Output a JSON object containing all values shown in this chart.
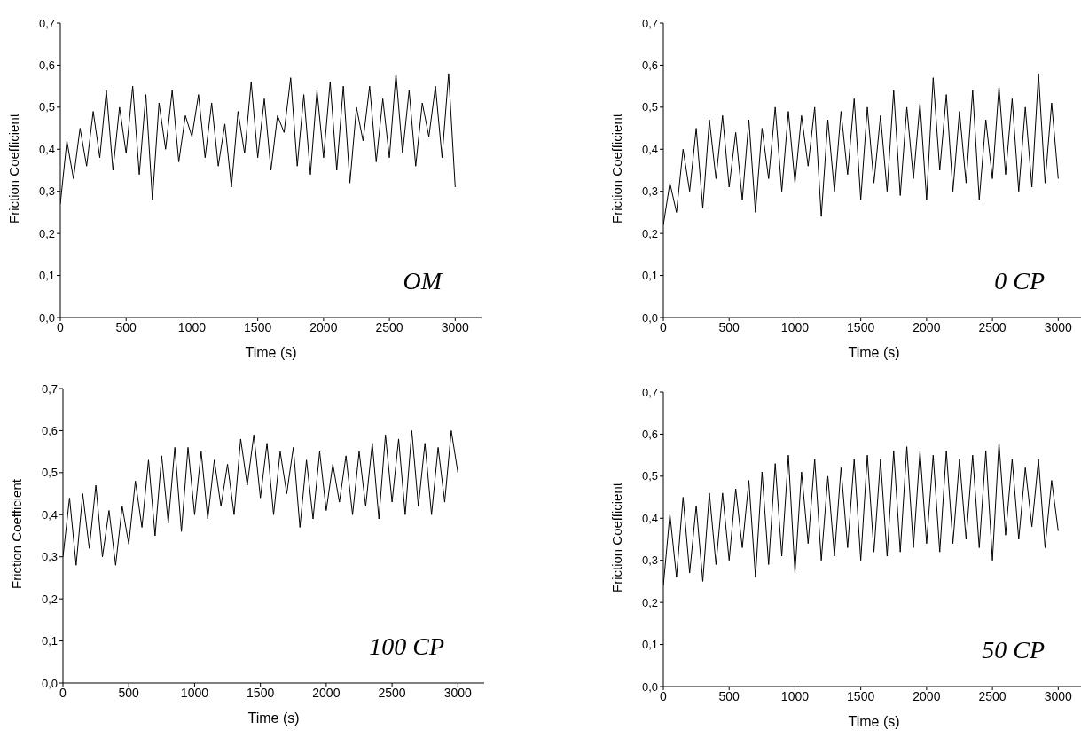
{
  "chart_data": [
    {
      "type": "line",
      "xlabel": "Time (s)",
      "ylabel": "Friction Coefficient",
      "annotations": [
        "OM"
      ],
      "xlim": [
        0,
        3200
      ],
      "xticks": [
        0,
        500,
        1000,
        1500,
        2000,
        2500,
        3000
      ],
      "ylim": [
        0,
        0.7
      ],
      "yticks": [
        {
          "value": 0,
          "label": "0,0"
        },
        {
          "value": 0.1,
          "label": "0,1"
        },
        {
          "value": 0.2,
          "label": "0,2"
        },
        {
          "value": 0.3,
          "label": "0,3"
        },
        {
          "value": 0.4,
          "label": "0,4"
        },
        {
          "value": 0.5,
          "label": "0,5"
        },
        {
          "value": 0.6,
          "label": "0,6"
        },
        {
          "value": 0.7,
          "label": "0,7"
        }
      ],
      "x": [
        0,
        50,
        100,
        150,
        200,
        250,
        300,
        350,
        400,
        450,
        500,
        550,
        600,
        650,
        700,
        750,
        800,
        850,
        900,
        950,
        1000,
        1050,
        1100,
        1150,
        1200,
        1250,
        1300,
        1350,
        1400,
        1450,
        1500,
        1550,
        1600,
        1650,
        1700,
        1750,
        1800,
        1850,
        1900,
        1950,
        2000,
        2050,
        2100,
        2150,
        2200,
        2250,
        2300,
        2350,
        2400,
        2450,
        2500,
        2550,
        2600,
        2650,
        2700,
        2750,
        2800,
        2850,
        2900,
        2950,
        3000
      ],
      "series": [
        {
          "color": "#000000",
          "values": [
            0.27,
            0.42,
            0.33,
            0.45,
            0.36,
            0.49,
            0.38,
            0.54,
            0.35,
            0.5,
            0.39,
            0.55,
            0.34,
            0.53,
            0.28,
            0.51,
            0.4,
            0.54,
            0.37,
            0.48,
            0.43,
            0.53,
            0.38,
            0.51,
            0.36,
            0.46,
            0.31,
            0.49,
            0.39,
            0.56,
            0.38,
            0.52,
            0.35,
            0.48,
            0.44,
            0.57,
            0.36,
            0.53,
            0.34,
            0.54,
            0.38,
            0.56,
            0.35,
            0.55,
            0.32,
            0.5,
            0.42,
            0.55,
            0.37,
            0.52,
            0.38,
            0.58,
            0.39,
            0.54,
            0.36,
            0.51,
            0.43,
            0.55,
            0.38,
            0.58,
            0.31
          ]
        }
      ]
    },
    {
      "type": "line",
      "xlabel": "Time (s)",
      "ylabel": "Friction Coefficient",
      "annotations": [
        "0 CP"
      ],
      "xlim": [
        0,
        3200
      ],
      "xticks": [
        0,
        500,
        1000,
        1500,
        2000,
        2500,
        3000
      ],
      "ylim": [
        0,
        0.7
      ],
      "yticks": [
        {
          "value": 0,
          "label": "0,0"
        },
        {
          "value": 0.1,
          "label": "0,1"
        },
        {
          "value": 0.2,
          "label": "0,2"
        },
        {
          "value": 0.3,
          "label": "0,3"
        },
        {
          "value": 0.4,
          "label": "0,4"
        },
        {
          "value": 0.5,
          "label": "0,5"
        },
        {
          "value": 0.6,
          "label": "0,6"
        },
        {
          "value": 0.7,
          "label": "0,7"
        }
      ],
      "x": [
        0,
        50,
        100,
        150,
        200,
        250,
        300,
        350,
        400,
        450,
        500,
        550,
        600,
        650,
        700,
        750,
        800,
        850,
        900,
        950,
        1000,
        1050,
        1100,
        1150,
        1200,
        1250,
        1300,
        1350,
        1400,
        1450,
        1500,
        1550,
        1600,
        1650,
        1700,
        1750,
        1800,
        1850,
        1900,
        1950,
        2000,
        2050,
        2100,
        2150,
        2200,
        2250,
        2300,
        2350,
        2400,
        2450,
        2500,
        2550,
        2600,
        2650,
        2700,
        2750,
        2800,
        2850,
        2900,
        2950,
        3000
      ],
      "series": [
        {
          "color": "#000000",
          "values": [
            0.22,
            0.32,
            0.25,
            0.4,
            0.3,
            0.45,
            0.26,
            0.47,
            0.33,
            0.48,
            0.31,
            0.44,
            0.28,
            0.47,
            0.25,
            0.45,
            0.33,
            0.5,
            0.3,
            0.49,
            0.32,
            0.48,
            0.36,
            0.5,
            0.24,
            0.47,
            0.3,
            0.49,
            0.34,
            0.52,
            0.28,
            0.5,
            0.32,
            0.48,
            0.3,
            0.54,
            0.29,
            0.5,
            0.33,
            0.51,
            0.28,
            0.57,
            0.35,
            0.53,
            0.3,
            0.49,
            0.32,
            0.54,
            0.28,
            0.47,
            0.33,
            0.55,
            0.34,
            0.52,
            0.3,
            0.5,
            0.31,
            0.58,
            0.32,
            0.51,
            0.33
          ]
        }
      ]
    },
    {
      "type": "line",
      "xlabel": "Time (s)",
      "ylabel": "Friction Coefficient",
      "annotations": [
        "100 CP"
      ],
      "xlim": [
        0,
        3200
      ],
      "xticks": [
        0,
        500,
        1000,
        1500,
        2000,
        2500,
        3000
      ],
      "ylim": [
        0,
        0.7
      ],
      "yticks": [
        {
          "value": 0,
          "label": "0,0"
        },
        {
          "value": 0.1,
          "label": "0,1"
        },
        {
          "value": 0.2,
          "label": "0,2"
        },
        {
          "value": 0.3,
          "label": "0,3"
        },
        {
          "value": 0.4,
          "label": "0,4"
        },
        {
          "value": 0.5,
          "label": "0,5"
        },
        {
          "value": 0.6,
          "label": "0,6"
        },
        {
          "value": 0.7,
          "label": "0,7"
        }
      ],
      "x": [
        0,
        50,
        100,
        150,
        200,
        250,
        300,
        350,
        400,
        450,
        500,
        550,
        600,
        650,
        700,
        750,
        800,
        850,
        900,
        950,
        1000,
        1050,
        1100,
        1150,
        1200,
        1250,
        1300,
        1350,
        1400,
        1450,
        1500,
        1550,
        1600,
        1650,
        1700,
        1750,
        1800,
        1850,
        1900,
        1950,
        2000,
        2050,
        2100,
        2150,
        2200,
        2250,
        2300,
        2350,
        2400,
        2450,
        2500,
        2550,
        2600,
        2650,
        2700,
        2750,
        2800,
        2850,
        2900,
        2950,
        3000
      ],
      "series": [
        {
          "color": "#000000",
          "values": [
            0.3,
            0.44,
            0.28,
            0.45,
            0.32,
            0.47,
            0.3,
            0.41,
            0.28,
            0.42,
            0.33,
            0.48,
            0.37,
            0.53,
            0.35,
            0.54,
            0.38,
            0.56,
            0.36,
            0.56,
            0.4,
            0.55,
            0.39,
            0.53,
            0.42,
            0.52,
            0.4,
            0.58,
            0.47,
            0.59,
            0.44,
            0.57,
            0.4,
            0.55,
            0.45,
            0.56,
            0.37,
            0.53,
            0.39,
            0.55,
            0.41,
            0.52,
            0.43,
            0.54,
            0.4,
            0.55,
            0.42,
            0.57,
            0.39,
            0.59,
            0.43,
            0.58,
            0.4,
            0.6,
            0.42,
            0.57,
            0.4,
            0.56,
            0.43,
            0.6,
            0.5
          ]
        }
      ]
    },
    {
      "type": "line",
      "xlabel": "Time (s)",
      "ylabel": "Friction Coefficient",
      "annotations": [
        "50 CP"
      ],
      "xlim": [
        0,
        3200
      ],
      "xticks": [
        0,
        500,
        1000,
        1500,
        2000,
        2500,
        3000
      ],
      "ylim": [
        0,
        0.7
      ],
      "yticks": [
        {
          "value": 0,
          "label": "0,0"
        },
        {
          "value": 0.1,
          "label": "0,1"
        },
        {
          "value": 0.2,
          "label": "0,2"
        },
        {
          "value": 0.3,
          "label": "0,3"
        },
        {
          "value": 0.4,
          "label": "0,4"
        },
        {
          "value": 0.5,
          "label": "0,5"
        },
        {
          "value": 0.6,
          "label": "0,6"
        },
        {
          "value": 0.7,
          "label": "0,7"
        }
      ],
      "x": [
        0,
        50,
        100,
        150,
        200,
        250,
        300,
        350,
        400,
        450,
        500,
        550,
        600,
        650,
        700,
        750,
        800,
        850,
        900,
        950,
        1000,
        1050,
        1100,
        1150,
        1200,
        1250,
        1300,
        1350,
        1400,
        1450,
        1500,
        1550,
        1600,
        1650,
        1700,
        1750,
        1800,
        1850,
        1900,
        1950,
        2000,
        2050,
        2100,
        2150,
        2200,
        2250,
        2300,
        2350,
        2400,
        2450,
        2500,
        2550,
        2600,
        2650,
        2700,
        2750,
        2800,
        2850,
        2900,
        2950,
        3000
      ],
      "series": [
        {
          "color": "#000000",
          "values": [
            0.24,
            0.41,
            0.26,
            0.45,
            0.27,
            0.43,
            0.25,
            0.46,
            0.29,
            0.46,
            0.3,
            0.47,
            0.33,
            0.49,
            0.26,
            0.51,
            0.29,
            0.53,
            0.31,
            0.55,
            0.27,
            0.51,
            0.34,
            0.54,
            0.3,
            0.5,
            0.31,
            0.52,
            0.33,
            0.54,
            0.3,
            0.55,
            0.32,
            0.54,
            0.31,
            0.56,
            0.32,
            0.57,
            0.33,
            0.56,
            0.34,
            0.55,
            0.32,
            0.56,
            0.34,
            0.54,
            0.35,
            0.55,
            0.33,
            0.56,
            0.3,
            0.58,
            0.36,
            0.54,
            0.35,
            0.52,
            0.38,
            0.54,
            0.33,
            0.49,
            0.37
          ]
        }
      ]
    }
  ]
}
